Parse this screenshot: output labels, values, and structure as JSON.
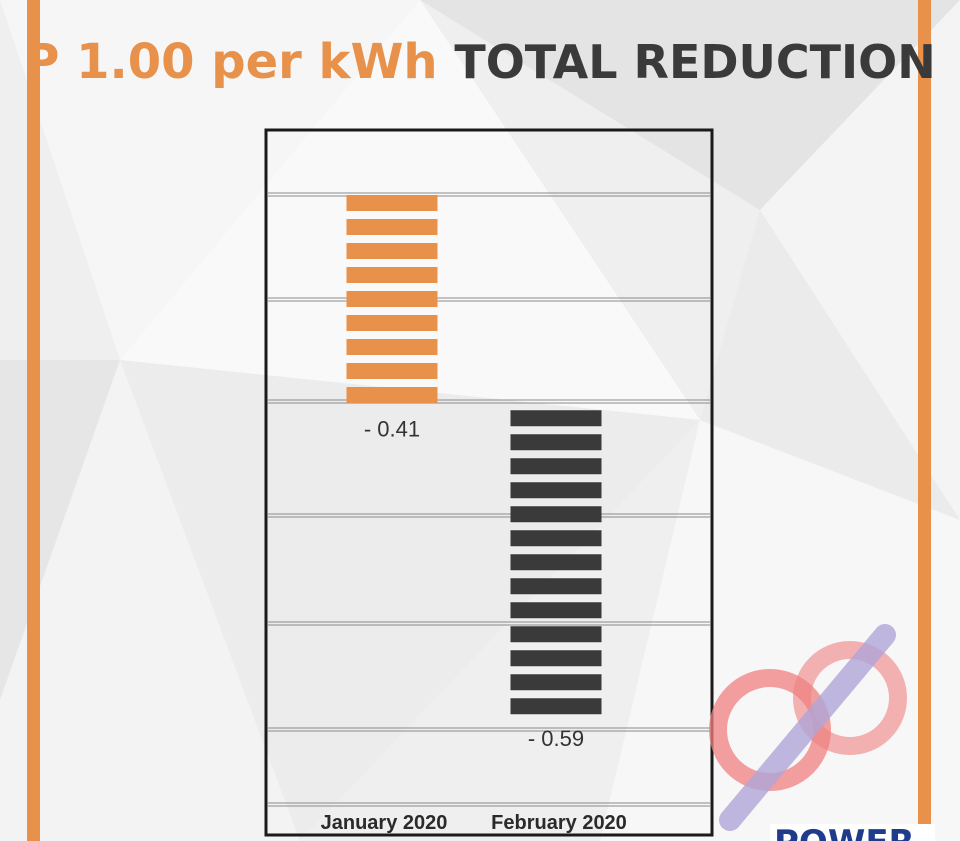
{
  "header": {
    "accent_text": "P 1.00 per kWh",
    "dark_text": "TOTAL REDUCTION"
  },
  "colors": {
    "accent": "#e8914a",
    "dark": "#3a3a3a",
    "frame": "#1a1a1a",
    "gridline": "#8a8a8a"
  },
  "chart_data": {
    "type": "bar",
    "categories": [
      "January 2020",
      "February 2020"
    ],
    "values": [
      -0.41,
      -0.59
    ],
    "value_labels": [
      "- 0.41",
      "- 0.59"
    ],
    "stacking": "waterfall",
    "total": -1.0,
    "bar_colors": [
      "#e8914a",
      "#3a3a3a"
    ],
    "bar_style": "horizontal stripes",
    "grid": true,
    "legend": "none"
  },
  "watermark": {
    "icon": "power-plug-logo-icon",
    "brand_text": "POWER"
  }
}
